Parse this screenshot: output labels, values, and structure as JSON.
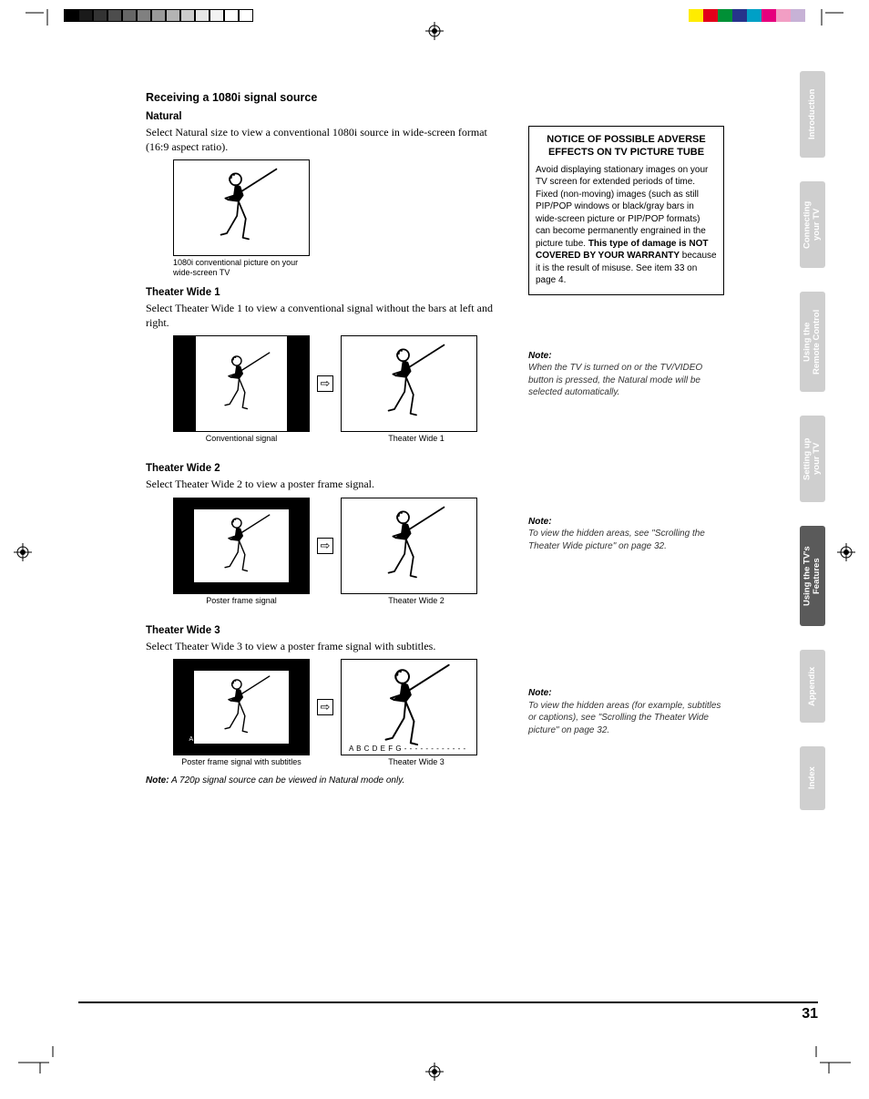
{
  "heading_main": "Receiving a 1080i signal source",
  "natural": {
    "title": "Natural",
    "body": "Select Natural size to view a conventional 1080i source in wide-screen format (16:9 aspect ratio).",
    "caption": "1080i conventional picture on your wide-screen TV"
  },
  "tw1": {
    "title": "Theater Wide 1",
    "body": "Select Theater Wide 1 to view a conventional signal without the bars at left and right.",
    "cap_left": "Conventional signal",
    "cap_right": "Theater Wide 1"
  },
  "tw2": {
    "title": "Theater Wide 2",
    "body": "Select Theater Wide 2 to view a poster frame signal.",
    "cap_left": "Poster frame signal",
    "cap_right": "Theater Wide 2"
  },
  "tw3": {
    "title": "Theater Wide 3",
    "body": "Select Theater Wide 3 to view a poster frame signal with subtitles.",
    "cap_left": "Poster frame signal with subtitles",
    "cap_right": "Theater Wide 3",
    "subs": "A B C D E F G - - - - - - - - - - - -"
  },
  "footnote_label": "Note:",
  "footnote_body": " A 720p signal source can be viewed in Natural mode only.",
  "notice": {
    "title": "NOTICE OF POSSIBLE ADVERSE EFFECTS ON TV PICTURE TUBE",
    "body1": "Avoid displaying stationary images on your TV screen for extended periods of time. Fixed (non-moving) images (such as still PIP/POP windows or black/gray bars in wide-screen picture or PIP/POP formats) can become permanently engrained in the picture tube. ",
    "bold": "This type of damage is NOT COVERED BY YOUR WARRANTY",
    "body2": " because it is the result of misuse. See item 33 on page 4."
  },
  "note1": {
    "label": "Note:",
    "body": "When the TV is turned on or the TV/VIDEO button is pressed, the Natural mode will be selected automatically."
  },
  "note2": {
    "label": "Note:",
    "body": "To view the hidden areas, see \"Scrolling the Theater Wide picture\" on page 32."
  },
  "note3": {
    "label": "Note:",
    "body": "To view the hidden areas (for example, subtitles or captions), see \"Scrolling the Theater Wide picture\" on page 32."
  },
  "tabs": {
    "t1": "Introduction",
    "t2": "Connecting\nyour TV",
    "t3": "Using the\nRemote Control",
    "t4": "Setting up\nyour TV",
    "t5": "Using the TV's\nFeatures",
    "t6": "Appendix",
    "t7": "Index"
  },
  "page_number": "31",
  "arrow": "⇨",
  "grayscale": [
    "#000000",
    "#1a1a1a",
    "#333333",
    "#4d4d4d",
    "#666666",
    "#808080",
    "#999999",
    "#b3b3b3",
    "#cccccc",
    "#e6e6e6",
    "#f2f2f2",
    "#ffffff",
    "#ffffff"
  ],
  "colors": [
    "#ffec00",
    "#e2001a",
    "#009036",
    "#26348b",
    "#00a0c6",
    "#e6007e",
    "#f29ec4",
    "#c7b2d6"
  ]
}
